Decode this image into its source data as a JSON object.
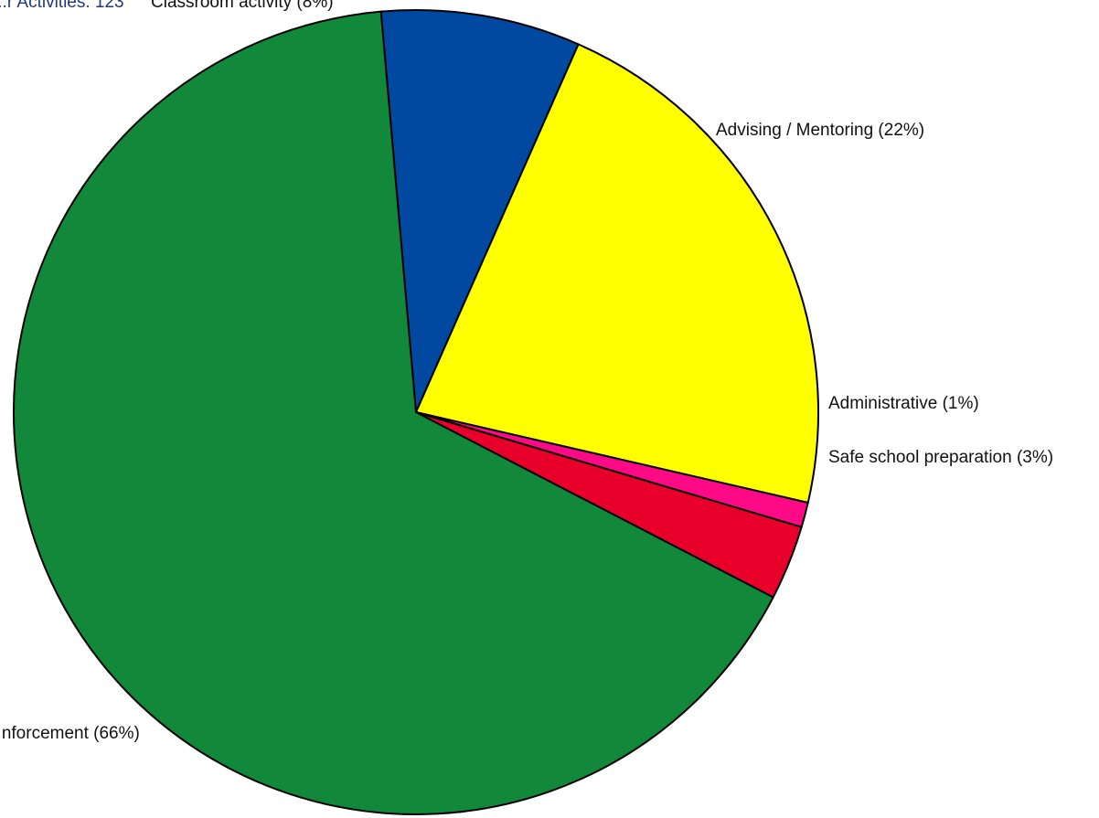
{
  "header": {
    "cut_text": "...r Activities: 123"
  },
  "chart_data": {
    "type": "pie",
    "start_angle_deg": -95,
    "direction": "clockwise",
    "slices": [
      {
        "label": "Classroom activity (8%)",
        "value": 8,
        "color": "#0048a0"
      },
      {
        "label": "Advising / Mentoring (22%)",
        "value": 22,
        "color": "#ffff00"
      },
      {
        "label": "Administrative (1%)",
        "value": 1,
        "color": "#ff0a86"
      },
      {
        "label": "Safe school preparation (3%)",
        "value": 3,
        "color": "#e8002a"
      },
      {
        "label": "...nforcement (66%)",
        "value": 66,
        "color": "#12883a"
      }
    ]
  }
}
